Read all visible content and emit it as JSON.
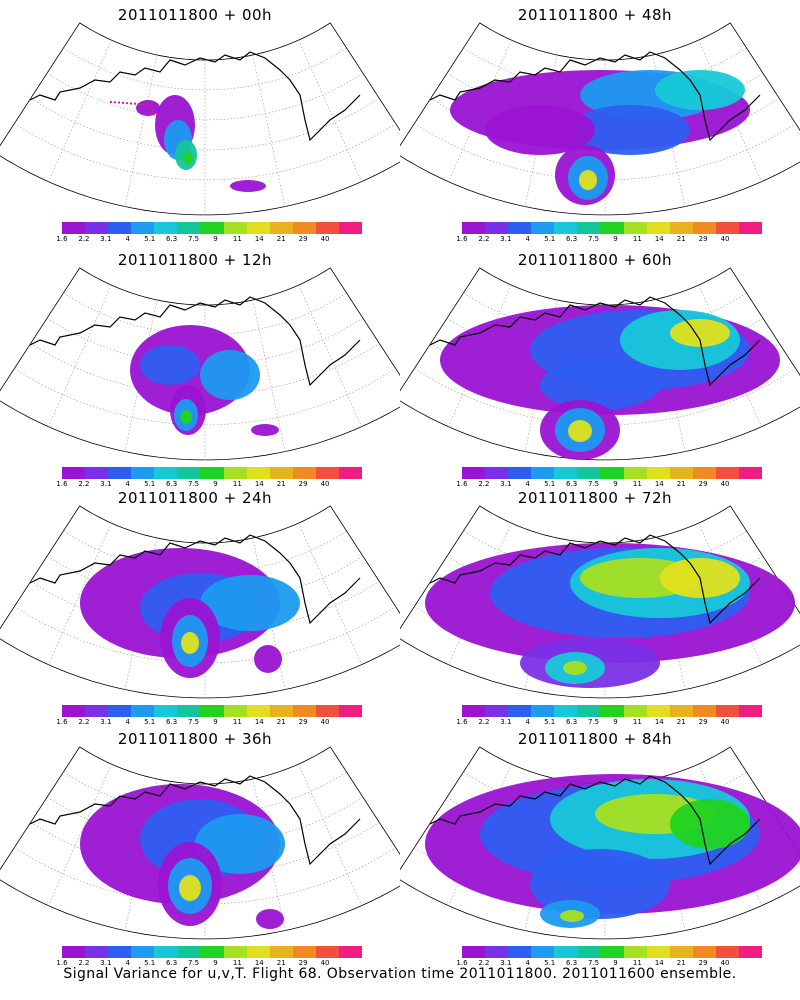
{
  "colorbar": {
    "labels": [
      "1.6",
      "2.2",
      "3.1",
      "4",
      "5.1",
      "6.3",
      "7.5",
      "9",
      "11",
      "14",
      "21",
      "29",
      "40"
    ],
    "colors": [
      "#9a14d2",
      "#7a30e6",
      "#2e5ef0",
      "#1e9af0",
      "#18c8d8",
      "#14c49a",
      "#22d222",
      "#a6e022",
      "#e0e01e",
      "#e6b21e",
      "#f08a22",
      "#f0503c",
      "#f01e82"
    ]
  },
  "panels": [
    {
      "title": "2011011800 + 00h"
    },
    {
      "title": "2011011800 + 48h"
    },
    {
      "title": "2011011800 + 12h"
    },
    {
      "title": "2011011800 + 60h"
    },
    {
      "title": "2011011800 + 24h"
    },
    {
      "title": "2011011800 + 72h"
    },
    {
      "title": "2011011800 + 36h"
    },
    {
      "title": "2011011800 + 84h"
    }
  ],
  "footer": "Signal Variance for u,v,T. Flight 68. Observation time 2011011800. 2011011600 ensemble.",
  "styles": {
    "background": "#ffffff",
    "coast": "#000000",
    "grid": "#9a9a9a",
    "flight_track": "#e8148c"
  },
  "icons": {
    "map": "polar-stereographic-map",
    "legend": "colorbar"
  }
}
